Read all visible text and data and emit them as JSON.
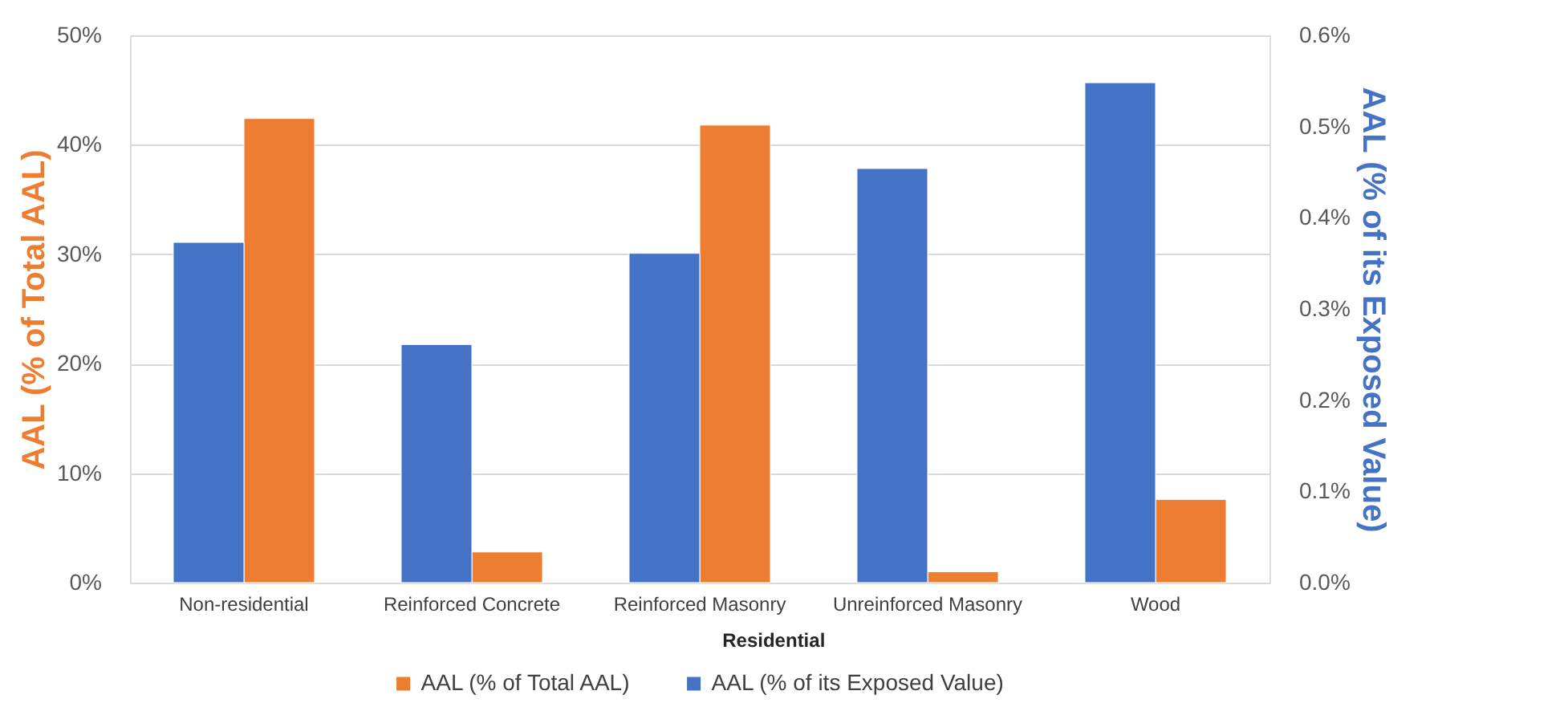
{
  "chart_data": {
    "type": "bar",
    "categories": [
      "Non-residential",
      "Reinforced Concrete",
      "Reinforced Masonry",
      "Unreinforced Masonry",
      "Wood"
    ],
    "series": [
      {
        "name": "AAL (% of Total AAL)",
        "color": "#ed7d31",
        "values": [
          42.4,
          2.8,
          41.8,
          1.0,
          7.6
        ]
      },
      {
        "name": "AAL (% of its Exposed Value)",
        "color": "#4472c4",
        "axis": "y2",
        "values": [
          0.373,
          0.261,
          0.361,
          0.454,
          0.548
        ]
      }
    ],
    "ylabel": "AAL (% of Total AAL)",
    "y2label": "AAL (% of its Exposed Value)",
    "ylim": [
      0,
      50
    ],
    "yticks": [
      {
        "value": 0,
        "label": "0%"
      },
      {
        "value": 10,
        "label": "10%"
      },
      {
        "value": 20,
        "label": "20%"
      },
      {
        "value": 30,
        "label": "30%"
      },
      {
        "value": 40,
        "label": "40%"
      },
      {
        "value": 50,
        "label": "50%"
      }
    ],
    "y2lim": [
      0,
      0.6
    ],
    "y2ticks": [
      {
        "value": 0,
        "label": "0.0%"
      },
      {
        "value": 0.1,
        "label": "0.1%"
      },
      {
        "value": 0.2,
        "label": "0.2%"
      },
      {
        "value": 0.3,
        "label": "0.3%"
      },
      {
        "value": 0.4,
        "label": "0.4%"
      },
      {
        "value": 0.5,
        "label": "0.5%"
      },
      {
        "value": 0.6,
        "label": "0.6%"
      }
    ],
    "annotations": [
      "Residential"
    ],
    "grid": "y",
    "legend": "bottom"
  }
}
